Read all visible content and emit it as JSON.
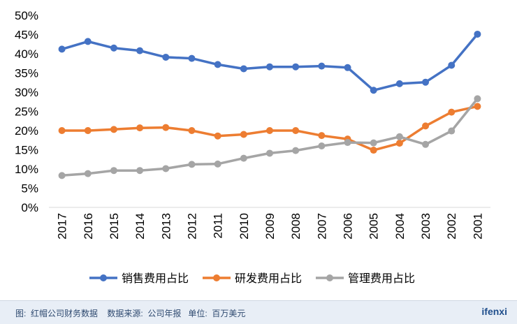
{
  "chart_data": {
    "type": "line",
    "categories": [
      "2017",
      "2016",
      "2015",
      "2014",
      "2013",
      "2012",
      "2011",
      "2010",
      "2009",
      "2008",
      "2007",
      "2006",
      "2005",
      "2004",
      "2003",
      "2002",
      "2001"
    ],
    "ylim": [
      0,
      50
    ],
    "yticks": [
      "0%",
      "5%",
      "10%",
      "15%",
      "20%",
      "25%",
      "30%",
      "35%",
      "40%",
      "45%",
      "50%"
    ],
    "grid": false,
    "legend_position": "bottom",
    "series": [
      {
        "name": "销售费用占比",
        "color": "#4472c4",
        "values": [
          41.2,
          43.2,
          41.5,
          40.8,
          39.1,
          38.8,
          37.2,
          36.1,
          36.6,
          36.6,
          36.8,
          36.4,
          30.5,
          32.2,
          32.6,
          37.0,
          45.1
        ]
      },
      {
        "name": "研发费用占比",
        "color": "#ed7d31",
        "values": [
          20.0,
          20.0,
          20.3,
          20.7,
          20.8,
          20.0,
          18.6,
          19.0,
          20.0,
          20.0,
          18.7,
          17.8,
          14.9,
          16.7,
          21.2,
          24.8,
          26.3
        ]
      },
      {
        "name": "管理费用占比",
        "color": "#a5a5a5",
        "values": [
          8.3,
          8.8,
          9.6,
          9.6,
          10.1,
          11.2,
          11.3,
          12.8,
          14.1,
          14.8,
          16.0,
          16.9,
          16.8,
          18.4,
          16.4,
          19.9,
          28.3
        ]
      }
    ]
  },
  "footer": {
    "source": "图:  红帽公司财务数据    数据来源:  公司年报   单位:  百万美元",
    "brand": "ifenxi"
  }
}
